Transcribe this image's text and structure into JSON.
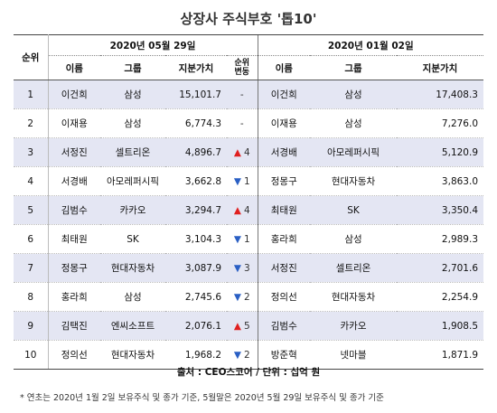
{
  "title": "상장사 주식부호 '톱10'",
  "headers": {
    "rank": "순위",
    "date_2020_05": "2020년 05월 29일",
    "date_2020_01": "2020년 01월 02일",
    "name": "이름",
    "group": "그룹",
    "value": "지분가치",
    "change_line1": "순위",
    "change_line2": "변동"
  },
  "rows": [
    {
      "rank": "1",
      "name_may": "이건희",
      "group_may": "삼성",
      "value_may": "15,101.7",
      "change": "-",
      "dir": "none",
      "name_jan": "이건희",
      "group_jan": "삼성",
      "value_jan": "17,408.3"
    },
    {
      "rank": "2",
      "name_may": "이재용",
      "group_may": "삼성",
      "value_may": "6,774.3",
      "change": "-",
      "dir": "none",
      "name_jan": "이재용",
      "group_jan": "삼성",
      "value_jan": "7,276.0"
    },
    {
      "rank": "3",
      "name_may": "서정진",
      "group_may": "셀트리온",
      "value_may": "4,896.7",
      "change": "4",
      "dir": "up",
      "name_jan": "서경배",
      "group_jan": "아모레퍼시픽",
      "value_jan": "5,120.9"
    },
    {
      "rank": "4",
      "name_may": "서경배",
      "group_may": "아모레퍼시픽",
      "value_may": "3,662.8",
      "change": "1",
      "dir": "down",
      "name_jan": "정몽구",
      "group_jan": "현대자동차",
      "value_jan": "3,863.0"
    },
    {
      "rank": "5",
      "name_may": "김범수",
      "group_may": "카카오",
      "value_may": "3,294.7",
      "change": "4",
      "dir": "up",
      "name_jan": "최태원",
      "group_jan": "SK",
      "value_jan": "3,350.4"
    },
    {
      "rank": "6",
      "name_may": "최태원",
      "group_may": "SK",
      "value_may": "3,104.3",
      "change": "1",
      "dir": "down",
      "name_jan": "홍라희",
      "group_jan": "삼성",
      "value_jan": "2,989.3"
    },
    {
      "rank": "7",
      "name_may": "정몽구",
      "group_may": "현대자동차",
      "value_may": "3,087.9",
      "change": "3",
      "dir": "down",
      "name_jan": "서정진",
      "group_jan": "셀트리온",
      "value_jan": "2,701.6"
    },
    {
      "rank": "8",
      "name_may": "홍라희",
      "group_may": "삼성",
      "value_may": "2,745.6",
      "change": "2",
      "dir": "down",
      "name_jan": "정의선",
      "group_jan": "현대자동차",
      "value_jan": "2,254.9"
    },
    {
      "rank": "9",
      "name_may": "김택진",
      "group_may": "엔씨소프트",
      "value_may": "2,076.1",
      "change": "5",
      "dir": "up",
      "name_jan": "김범수",
      "group_jan": "카카오",
      "value_jan": "1,908.5"
    },
    {
      "rank": "10",
      "name_may": "정의선",
      "group_may": "현대자동차",
      "value_may": "1,968.2",
      "change": "2",
      "dir": "down",
      "name_jan": "방준혁",
      "group_jan": "넷마블",
      "value_jan": "1,871.9"
    }
  ],
  "source": "출처 : CEO스코어 / 단위 : 십억 원",
  "footnote": "* 연초는 2020년 1월 2일 보유주식 및 종가 기준, 5월말은 2020년 5월 29일 보유주식 및 종가 기준",
  "colors": {
    "up": "#e02020",
    "down": "#2a5fc4",
    "shade": "#e4e6f3"
  },
  "icons": {
    "up": "triangle-up-icon",
    "down": "triangle-down-icon"
  }
}
